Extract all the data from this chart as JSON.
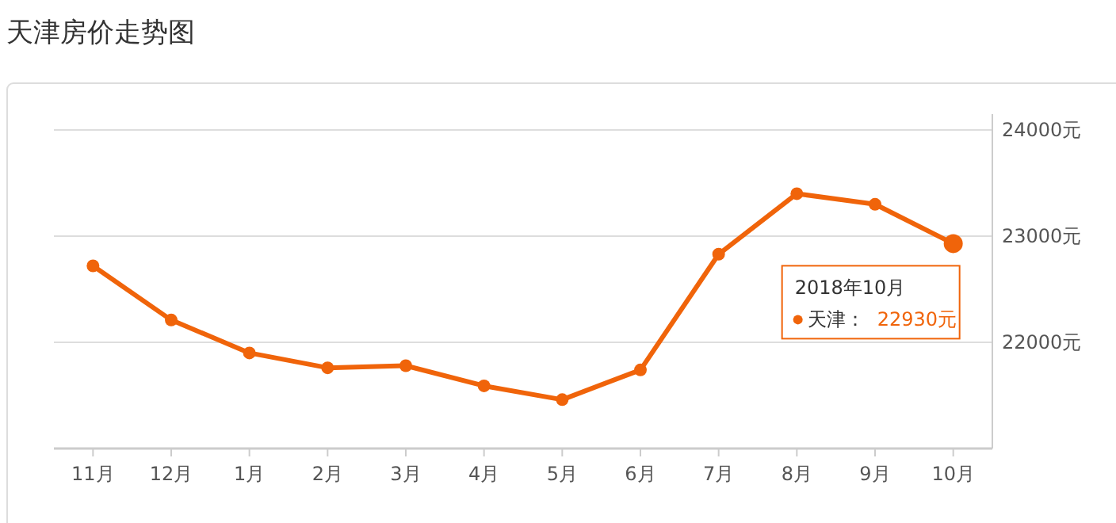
{
  "chart_data": {
    "type": "line",
    "title": "天津房价走势图",
    "categories": [
      "11月",
      "12月",
      "1月",
      "2月",
      "3月",
      "4月",
      "5月",
      "6月",
      "7月",
      "8月",
      "9月",
      "10月"
    ],
    "series": [
      {
        "name": "天津：",
        "color": "#f0640a",
        "values": [
          22720,
          22210,
          21900,
          21760,
          21780,
          21590,
          21460,
          21740,
          22830,
          23400,
          23300,
          22930
        ],
        "value_labels": [
          null,
          null,
          null,
          null,
          null,
          null,
          null,
          null,
          null,
          null,
          null,
          "22930元"
        ]
      }
    ],
    "ylim": [
      21000,
      24000
    ],
    "yticks": [
      {
        "value": 22000,
        "label": "22000元"
      },
      {
        "value": 23000,
        "label": "23000元"
      },
      {
        "value": 24000,
        "label": "24000元"
      }
    ],
    "grid": "y",
    "marker": "circle",
    "line_style": "solid",
    "annotations": [
      "2018年10月"
    ]
  }
}
